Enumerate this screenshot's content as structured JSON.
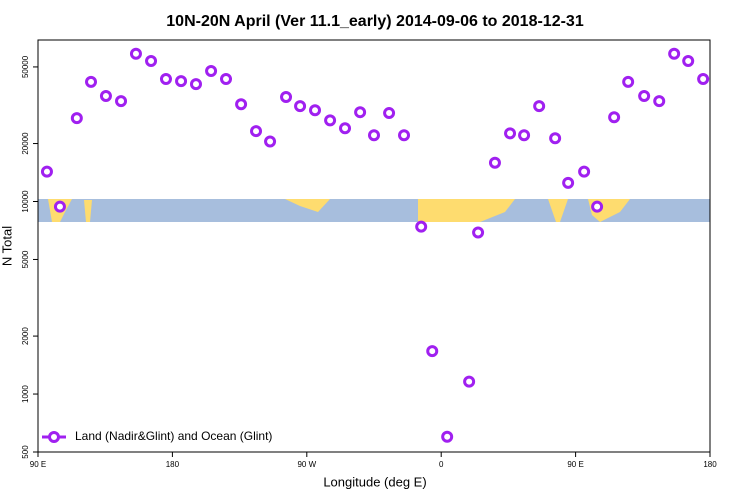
{
  "chart_data": {
    "type": "scatter",
    "title": "10N-20N April (Ver 11.1_early)   2014-09-06 to 2018-12-31",
    "x_label": "Longitude (deg E)",
    "y_label": "N Total",
    "log_y": true,
    "legend": "bottom-left",
    "xlim": [
      90,
      540
    ],
    "ylim": [
      500,
      69000
    ],
    "xticks": [
      {
        "value": 90,
        "label": "90 E"
      },
      180,
      {
        "value": 270,
        "label": "90 W"
      },
      {
        "value": 360,
        "label": "0"
      },
      {
        "value": 450,
        "label": "90 E"
      },
      {
        "value": 540,
        "label": "180"
      }
    ],
    "yticks": [
      500,
      1000,
      2000,
      5000,
      10000,
      20000,
      50000
    ],
    "series": [
      {
        "name": "Land (Nadir&Glint) and Ocean (Glint)",
        "color": "#a020f0",
        "x": [
          96,
          104.7,
          116,
          125.5,
          135.5,
          145.6,
          155.6,
          165.7,
          175.7,
          185.8,
          195.8,
          205.9,
          215.9,
          226,
          236,
          245.4,
          256.1,
          265.5,
          275.5,
          285.6,
          295.6,
          305.7,
          315,
          325.1,
          335.1,
          346.6,
          354,
          364,
          378.7,
          384.7,
          396,
          406.1,
          415.5,
          425.6,
          436.3,
          445,
          455.7,
          464.4,
          475.8,
          485.2,
          495.9,
          506,
          516,
          525.4,
          535.4
        ],
        "values": [
          14300,
          9400,
          27100,
          41800,
          35300,
          33200,
          58500,
          53700,
          43300,
          42200,
          40700,
          47600,
          43300,
          32000,
          23200,
          20500,
          34900,
          31300,
          29800,
          26400,
          24000,
          29100,
          22100,
          28800,
          22100,
          7400,
          1670,
          600,
          1160,
          6900,
          15900,
          22600,
          22100,
          31300,
          21300,
          12500,
          14300,
          9400,
          27400,
          41800,
          35300,
          33200,
          58500,
          53700,
          43300
        ]
      }
    ]
  }
}
